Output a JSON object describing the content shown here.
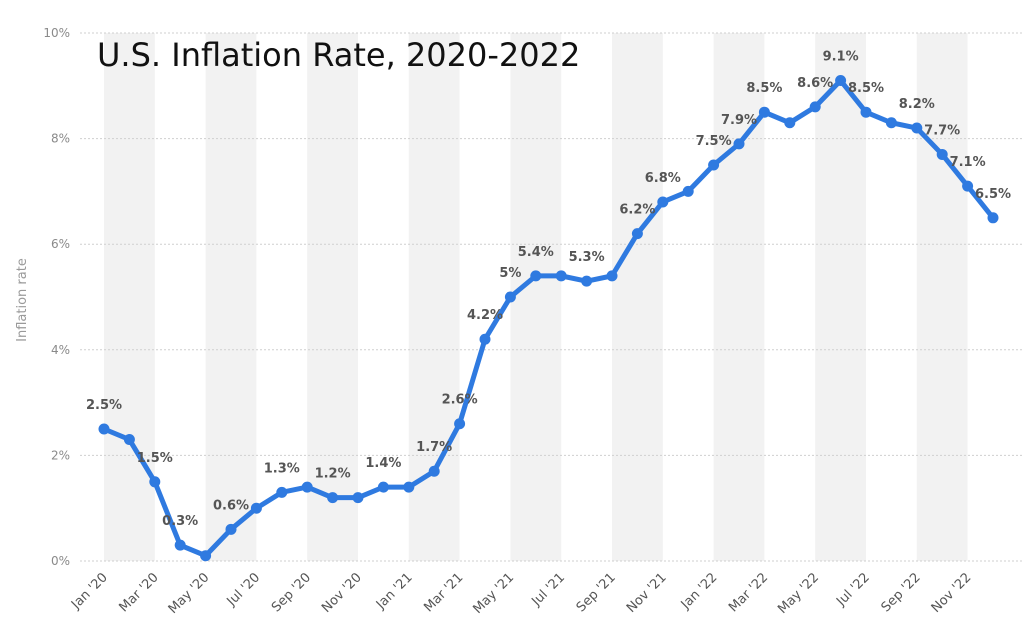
{
  "chart_data": {
    "type": "line",
    "title": "U.S. Inflation Rate, 2020-2022",
    "ylabel": "Inflation rate",
    "xlabel": "",
    "ylim": [
      0,
      10
    ],
    "yticks": [
      "0%",
      "2%",
      "4%",
      "6%",
      "8%",
      "10%"
    ],
    "grid": true,
    "color": "#2f7ae0",
    "x": [
      "Jan '20",
      "Feb '20",
      "Mar '20",
      "Apr '20",
      "May '20",
      "Jun '20",
      "Jul '20",
      "Aug '20",
      "Sep '20",
      "Oct '20",
      "Nov '20",
      "Dec '20",
      "Jan '21",
      "Feb '21",
      "Mar '21",
      "Apr '21",
      "May '21",
      "Jun '21",
      "Jul '21",
      "Aug '21",
      "Sep '21",
      "Oct '21",
      "Nov '21",
      "Dec '21",
      "Jan '22",
      "Feb '22",
      "Mar '22",
      "Apr '22",
      "May '22",
      "Jun '22",
      "Jul '22",
      "Aug '22",
      "Sep '22",
      "Oct '22",
      "Nov '22",
      "Dec '22"
    ],
    "xtick_labels": [
      "Jan '20",
      "Mar '20",
      "May '20",
      "Jul '20",
      "Sep '20",
      "Nov '20",
      "Jan '21",
      "Mar '21",
      "May '21",
      "Jul '21",
      "Sep '21",
      "Nov '21",
      "Jan '22",
      "Mar '22",
      "May '22",
      "Jul '22",
      "Sep '22",
      "Nov '22"
    ],
    "values": [
      2.5,
      2.3,
      1.5,
      0.3,
      0.1,
      0.6,
      1.0,
      1.3,
      1.4,
      1.2,
      1.2,
      1.4,
      1.4,
      1.7,
      2.6,
      4.2,
      5.0,
      5.4,
      5.4,
      5.3,
      5.4,
      6.2,
      6.8,
      7.0,
      7.5,
      7.9,
      8.5,
      8.3,
      8.6,
      9.1,
      8.5,
      8.3,
      8.2,
      7.7,
      7.1,
      6.5
    ],
    "data_labels": [
      {
        "index": 0,
        "text": "2.5%"
      },
      {
        "index": 2,
        "text": "1.5%"
      },
      {
        "index": 3,
        "text": "0.3%"
      },
      {
        "index": 5,
        "text": "0.6%"
      },
      {
        "index": 7,
        "text": "1.3%"
      },
      {
        "index": 9,
        "text": "1.2%"
      },
      {
        "index": 11,
        "text": "1.4%"
      },
      {
        "index": 13,
        "text": "1.7%"
      },
      {
        "index": 14,
        "text": "2.6%"
      },
      {
        "index": 15,
        "text": "4.2%"
      },
      {
        "index": 16,
        "text": "5%"
      },
      {
        "index": 17,
        "text": "5.4%"
      },
      {
        "index": 19,
        "text": "5.3%"
      },
      {
        "index": 21,
        "text": "6.2%"
      },
      {
        "index": 22,
        "text": "6.8%"
      },
      {
        "index": 24,
        "text": "7.5%"
      },
      {
        "index": 25,
        "text": "7.9%"
      },
      {
        "index": 26,
        "text": "8.5%"
      },
      {
        "index": 28,
        "text": "8.6%"
      },
      {
        "index": 29,
        "text": "9.1%"
      },
      {
        "index": 30,
        "text": "8.5%"
      },
      {
        "index": 32,
        "text": "8.2%"
      },
      {
        "index": 33,
        "text": "7.7%"
      },
      {
        "index": 34,
        "text": "7.1%"
      },
      {
        "index": 35,
        "text": "6.5%"
      }
    ]
  }
}
